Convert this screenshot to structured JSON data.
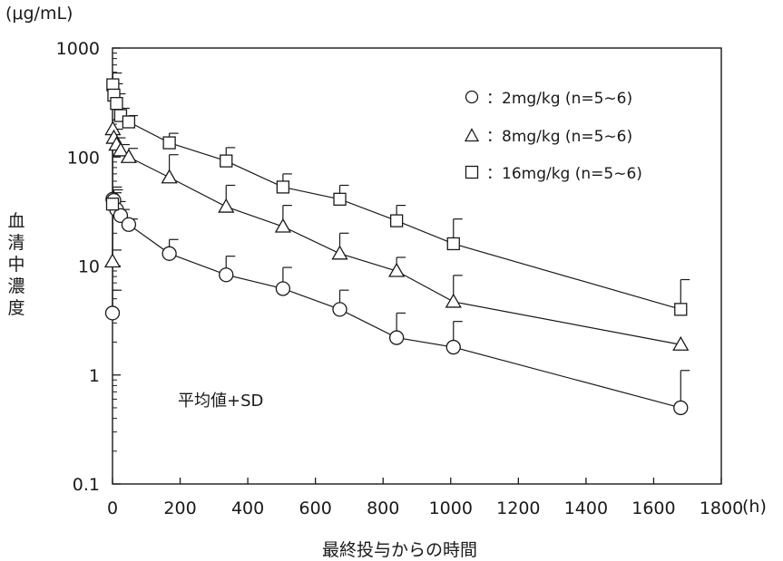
{
  "unit_label": "(μg/mL)",
  "x_unit_label": "(h)",
  "ylabel_chars": [
    "血",
    "清",
    "中",
    "濃",
    "度"
  ],
  "xlabel": "最終投与からの時間",
  "note": "平均値+SD",
  "colors": {
    "ink": "#1a1a1a",
    "background": "#ffffff"
  },
  "legend": [
    {
      "marker": "circle",
      "label": "：2mg/kg (n=5∼6)"
    },
    {
      "marker": "triangle",
      "label": "：8mg/kg (n=5∼6)"
    },
    {
      "marker": "square",
      "label": "：16mg/kg (n=5∼6)"
    }
  ],
  "chart_data": {
    "type": "line",
    "yscale": "log",
    "xlim": [
      0,
      1800
    ],
    "ylim": [
      0.1,
      1000
    ],
    "x_ticks": [
      0,
      200,
      400,
      600,
      800,
      1000,
      1200,
      1400,
      1600,
      1800
    ],
    "x_tick_labels": [
      "0",
      "200",
      "400",
      "600",
      "800",
      "1000",
      "1200",
      "1400",
      "1600",
      "1800"
    ],
    "y_ticks": [
      0.1,
      1,
      10,
      100,
      1000
    ],
    "y_tick_labels": [
      "0.1",
      "1",
      "10",
      "100",
      "1000"
    ],
    "grid": false,
    "legend_position": "top-right",
    "series": [
      {
        "name": "2mg/kg (n=5∼6)",
        "marker": "circle",
        "x": [
          0,
          1,
          4,
          12,
          24,
          48,
          168,
          336,
          504,
          672,
          840,
          1008,
          1680
        ],
        "y": [
          3.7,
          41,
          40,
          33,
          29,
          24,
          13,
          8.3,
          6.2,
          4.0,
          2.2,
          1.8,
          0.5
        ],
        "error": [
          2.3,
          12,
          10,
          6,
          4,
          3,
          4.5,
          4,
          3.5,
          2,
          1.5,
          1.3,
          0.6
        ]
      },
      {
        "name": "8mg/kg (n=5∼6)",
        "marker": "triangle",
        "x": [
          0,
          1,
          4,
          12,
          24,
          48,
          168,
          336,
          504,
          672,
          840,
          1008,
          1680
        ],
        "y": [
          11,
          180,
          150,
          130,
          115,
          100,
          65,
          35,
          23,
          13,
          9,
          4.7,
          1.9
        ],
        "error": [
          3,
          40,
          30,
          20,
          15,
          20,
          40,
          20,
          13,
          7,
          3,
          3.5,
          0
        ],
        "error_only": [
          false,
          false,
          false,
          false,
          false,
          false,
          false,
          false,
          false,
          false,
          false,
          false,
          false
        ]
      },
      {
        "name": "16mg/kg (n=5∼6)",
        "marker": "square",
        "x": [
          1,
          4,
          12,
          24,
          48,
          168,
          336,
          504,
          672,
          840,
          1008,
          1680
        ],
        "y": [
          460,
          370,
          310,
          240,
          210,
          135,
          92,
          53,
          41,
          26,
          16,
          4.0
        ],
        "error": [
          130,
          100,
          70,
          40,
          30,
          30,
          30,
          17,
          14,
          10,
          11,
          3.5
        ],
        "extra_points": [
          {
            "x": 0,
            "y": 37,
            "error": 10
          }
        ]
      }
    ]
  }
}
